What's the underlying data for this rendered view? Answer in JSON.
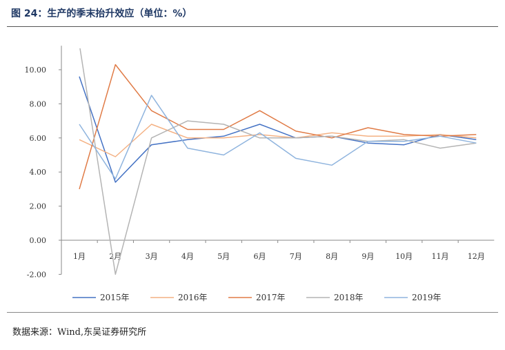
{
  "header": {
    "title": "图 24：生产的季末抬升效应（单位：%）"
  },
  "footer": {
    "source": "数据来源：Wind,东吴证券研究所"
  },
  "chart_data": {
    "type": "line",
    "title": "",
    "xlabel": "",
    "ylabel": "",
    "categories": [
      "1月",
      "2月",
      "3月",
      "4月",
      "5月",
      "6月",
      "7月",
      "8月",
      "9月",
      "10月",
      "11月",
      "12月"
    ],
    "ylim": [
      -2,
      11
    ],
    "yticks": [
      -2,
      0,
      2,
      4,
      6,
      8,
      10
    ],
    "ytick_labels": [
      "-2.00",
      "0.00",
      "2.00",
      "4.00",
      "6.00",
      "8.00",
      "10.00"
    ],
    "legend_position": "bottom",
    "grid": false,
    "series": [
      {
        "name": "2015年",
        "color": "#4472c4",
        "values": [
          9.6,
          3.4,
          5.6,
          5.9,
          6.1,
          6.8,
          6.0,
          6.1,
          5.7,
          5.6,
          6.2,
          5.9
        ]
      },
      {
        "name": "2016年",
        "color": "#f4b183",
        "values": [
          5.9,
          4.9,
          6.8,
          6.0,
          6.0,
          6.2,
          6.0,
          6.3,
          6.1,
          6.1,
          6.2,
          6.0
        ]
      },
      {
        "name": "2017年",
        "color": "#e07b46",
        "values": [
          3.0,
          10.3,
          7.6,
          6.5,
          6.5,
          7.6,
          6.4,
          6.0,
          6.6,
          6.2,
          6.1,
          6.2
        ]
      },
      {
        "name": "2018年",
        "color": "#b4b4b4",
        "values": [
          11.5,
          -2.0,
          6.0,
          7.0,
          6.8,
          6.0,
          6.0,
          6.1,
          5.8,
          5.9,
          5.4,
          5.7
        ]
      },
      {
        "name": "2019年",
        "color": "#8fb4de",
        "values": [
          6.8,
          3.6,
          8.5,
          5.4,
          5.0,
          6.3,
          4.8,
          4.4,
          5.8,
          5.8,
          6.1,
          5.7
        ]
      }
    ]
  }
}
